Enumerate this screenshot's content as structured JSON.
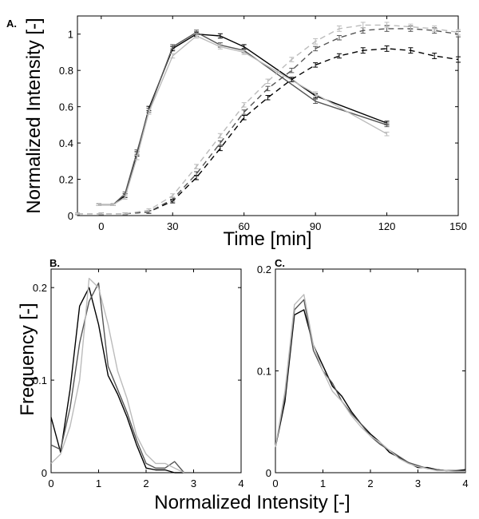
{
  "figure": {
    "shared_xlabel": "Normalized Intensity [-]",
    "shared_ylabel": "Frequency [-]"
  },
  "chart_data": [
    {
      "panel": "A.",
      "type": "line",
      "xlabel": "Time [min]",
      "ylabel": "Normalized Intensity [-]",
      "xlim": [
        -10,
        150
      ],
      "ylim": [
        0,
        1.1
      ],
      "xticks": [
        0,
        30,
        60,
        90,
        120,
        150
      ],
      "yticks": [
        0,
        0.2,
        0.4,
        0.6,
        0.8,
        1
      ],
      "grid": false,
      "legend": "none",
      "series": [
        {
          "style": "solid",
          "color": "#000000",
          "error_bars": true,
          "x": [
            -1,
            5,
            10,
            15,
            20,
            30,
            40,
            50,
            60,
            90,
            120
          ],
          "y": [
            0.06,
            0.06,
            0.11,
            0.34,
            0.59,
            0.92,
            1.0,
            0.99,
            0.93,
            0.66,
            0.51
          ],
          "err": [
            0.005,
            0.005,
            0.01,
            0.012,
            0.012,
            0.012,
            0.012,
            0.012,
            0.012,
            0.012,
            0.01
          ]
        },
        {
          "style": "solid",
          "color": "#555555",
          "error_bars": true,
          "x": [
            -1,
            5,
            10,
            15,
            20,
            30,
            40,
            50,
            60,
            90,
            120
          ],
          "y": [
            0.06,
            0.06,
            0.12,
            0.35,
            0.58,
            0.93,
            1.01,
            0.94,
            0.91,
            0.63,
            0.5
          ],
          "err": [
            0.005,
            0.005,
            0.01,
            0.012,
            0.012,
            0.012,
            0.012,
            0.012,
            0.012,
            0.012,
            0.01
          ]
        },
        {
          "style": "solid",
          "color": "#bbbbbb",
          "error_bars": true,
          "x": [
            -1,
            5,
            10,
            15,
            20,
            30,
            40,
            50,
            60,
            90,
            120
          ],
          "y": [
            0.06,
            0.06,
            0.1,
            0.32,
            0.57,
            0.88,
            0.99,
            0.93,
            0.9,
            0.67,
            0.45
          ],
          "err": [
            0.005,
            0.005,
            0.01,
            0.012,
            0.012,
            0.012,
            0.012,
            0.012,
            0.012,
            0.012,
            0.01
          ]
        },
        {
          "style": "dashed",
          "color": "#000000",
          "error_bars": true,
          "x": [
            -10,
            0,
            10,
            20,
            30,
            40,
            50,
            60,
            70,
            80,
            90,
            100,
            110,
            120,
            130,
            140,
            150
          ],
          "y": [
            0.01,
            0.01,
            0.01,
            0.02,
            0.08,
            0.21,
            0.37,
            0.54,
            0.65,
            0.75,
            0.83,
            0.88,
            0.91,
            0.92,
            0.91,
            0.88,
            0.86
          ],
          "err": [
            0.005,
            0.005,
            0.005,
            0.008,
            0.01,
            0.012,
            0.012,
            0.012,
            0.012,
            0.012,
            0.012,
            0.012,
            0.015,
            0.015,
            0.015,
            0.015,
            0.015
          ]
        },
        {
          "style": "dashed",
          "color": "#555555",
          "error_bars": true,
          "x": [
            -10,
            0,
            10,
            20,
            30,
            40,
            50,
            60,
            70,
            80,
            90,
            100,
            110,
            120,
            130,
            140,
            150
          ],
          "y": [
            0.01,
            0.01,
            0.01,
            0.02,
            0.09,
            0.23,
            0.4,
            0.57,
            0.7,
            0.8,
            0.92,
            0.98,
            1.02,
            1.03,
            1.03,
            1.02,
            1.0
          ],
          "err": [
            0.005,
            0.005,
            0.005,
            0.008,
            0.01,
            0.012,
            0.012,
            0.012,
            0.012,
            0.012,
            0.012,
            0.012,
            0.015,
            0.015,
            0.015,
            0.015,
            0.015
          ]
        },
        {
          "style": "dashed",
          "color": "#bbbbbb",
          "error_bars": true,
          "x": [
            -10,
            0,
            10,
            20,
            30,
            40,
            50,
            60,
            70,
            80,
            90,
            100,
            110,
            120,
            130,
            140,
            150
          ],
          "y": [
            0.01,
            0.01,
            0.01,
            0.03,
            0.11,
            0.27,
            0.44,
            0.61,
            0.74,
            0.86,
            0.96,
            1.03,
            1.05,
            1.05,
            1.04,
            1.03,
            1.01
          ],
          "err": [
            0.005,
            0.005,
            0.005,
            0.008,
            0.01,
            0.012,
            0.012,
            0.012,
            0.012,
            0.012,
            0.015,
            0.015,
            0.015,
            0.015,
            0.015,
            0.015,
            0.015
          ]
        }
      ]
    },
    {
      "panel": "B.",
      "type": "line",
      "xlabel": "",
      "ylabel": "",
      "xlim": [
        0,
        4
      ],
      "ylim": [
        0,
        0.22
      ],
      "xticks": [
        0,
        1,
        2,
        3,
        4
      ],
      "yticks": [
        0,
        0.1,
        0.2
      ],
      "ytick_labels": [
        "0",
        "0.1",
        "0.2"
      ],
      "grid": false,
      "legend": "none",
      "series": [
        {
          "style": "solid",
          "color": "#000000",
          "x": [
            0,
            0.2,
            0.4,
            0.6,
            0.8,
            1.0,
            1.2,
            1.4,
            1.6,
            1.8,
            2.0,
            2.2,
            2.4,
            2.6,
            2.8
          ],
          "y": [
            0.06,
            0.022,
            0.09,
            0.18,
            0.2,
            0.16,
            0.105,
            0.085,
            0.06,
            0.03,
            0.005,
            0.003,
            0.003,
            0.0,
            0.0
          ]
        },
        {
          "style": "solid",
          "color": "#555555",
          "x": [
            0,
            0.2,
            0.4,
            0.6,
            0.8,
            1.0,
            1.2,
            1.4,
            1.6,
            1.8,
            2.0,
            2.2,
            2.4,
            2.6,
            2.8
          ],
          "y": [
            0.03,
            0.025,
            0.07,
            0.14,
            0.185,
            0.205,
            0.115,
            0.09,
            0.065,
            0.035,
            0.01,
            0.005,
            0.005,
            0.012,
            0.0
          ]
        },
        {
          "style": "solid",
          "color": "#bbbbbb",
          "x": [
            0,
            0.2,
            0.4,
            0.6,
            0.8,
            1.0,
            1.2,
            1.4,
            1.6,
            1.8,
            2.0,
            2.2,
            2.4,
            2.6,
            2.8
          ],
          "y": [
            0.01,
            0.02,
            0.05,
            0.1,
            0.21,
            0.2,
            0.16,
            0.11,
            0.08,
            0.04,
            0.02,
            0.01,
            0.01,
            0.005,
            0.0
          ]
        }
      ]
    },
    {
      "panel": "C.",
      "type": "line",
      "xlabel": "",
      "ylabel": "",
      "xlim": [
        0,
        4
      ],
      "ylim": [
        0,
        0.2
      ],
      "xticks": [
        0,
        1,
        2,
        3,
        4
      ],
      "yticks": [
        0,
        0.1,
        0.2
      ],
      "ytick_labels": [
        "0",
        "0.1",
        "0.2"
      ],
      "grid": false,
      "legend": "none",
      "series": [
        {
          "style": "solid",
          "color": "#000000",
          "x": [
            0,
            0.2,
            0.4,
            0.6,
            0.8,
            1.0,
            1.2,
            1.4,
            1.6,
            1.8,
            2.0,
            2.2,
            2.4,
            2.6,
            2.8,
            3.0,
            3.2,
            3.4,
            3.6,
            3.8,
            4.0
          ],
          "y": [
            0.025,
            0.07,
            0.155,
            0.16,
            0.125,
            0.105,
            0.085,
            0.075,
            0.06,
            0.048,
            0.038,
            0.03,
            0.02,
            0.015,
            0.01,
            0.005,
            0.005,
            0.003,
            0.002,
            0.002,
            0.003
          ]
        },
        {
          "style": "solid",
          "color": "#555555",
          "x": [
            0,
            0.2,
            0.4,
            0.6,
            0.8,
            1.0,
            1.2,
            1.4,
            1.6,
            1.8,
            2.0,
            2.2,
            2.4,
            2.6,
            2.8,
            3.0,
            3.2,
            3.4,
            3.6,
            3.8,
            4.0
          ],
          "y": [
            0.025,
            0.075,
            0.16,
            0.17,
            0.12,
            0.1,
            0.088,
            0.07,
            0.058,
            0.048,
            0.036,
            0.028,
            0.022,
            0.016,
            0.01,
            0.007,
            0.004,
            0.003,
            0.002,
            0.002,
            0.002
          ]
        },
        {
          "style": "solid",
          "color": "#bbbbbb",
          "x": [
            0,
            0.2,
            0.4,
            0.6,
            0.8,
            1.0,
            1.2,
            1.4,
            1.6,
            1.8,
            2.0,
            2.2,
            2.4,
            2.6,
            2.8,
            3.0,
            3.2,
            3.4,
            3.6,
            3.8,
            4.0
          ],
          "y": [
            0.025,
            0.08,
            0.165,
            0.175,
            0.125,
            0.1,
            0.08,
            0.07,
            0.056,
            0.045,
            0.036,
            0.03,
            0.022,
            0.014,
            0.009,
            0.006,
            0.004,
            0.002,
            0.002,
            0.001,
            0.001
          ]
        }
      ]
    }
  ]
}
